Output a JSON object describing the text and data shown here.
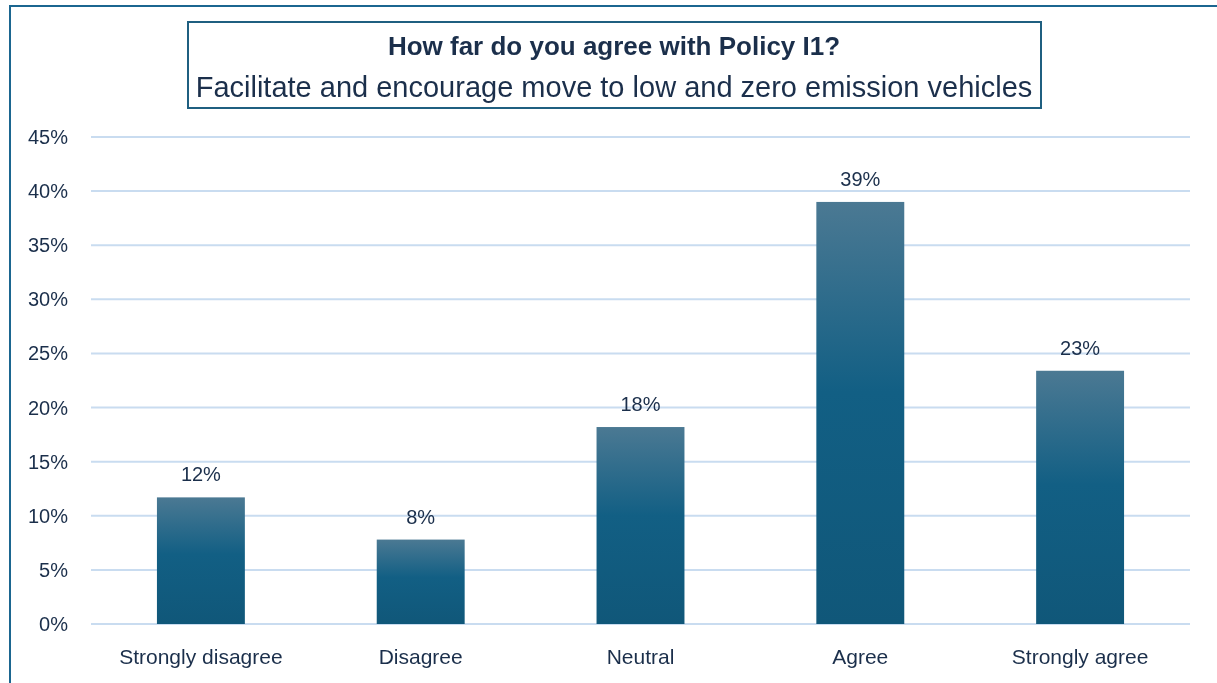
{
  "chart_data": {
    "type": "bar",
    "title": "How far do you agree with Policy I1?",
    "subtitle": "Facilitate and encourage move to low and zero emission vehicles",
    "categories": [
      "Strongly disagree",
      "Disagree",
      "Neutral",
      "Agree",
      "Strongly agree"
    ],
    "values": [
      11.7,
      7.8,
      18.2,
      39.0,
      23.4
    ],
    "value_labels": [
      "12%",
      "8%",
      "18%",
      "39%",
      "23%"
    ],
    "color": "#125f84",
    "ylim": [
      0,
      45
    ],
    "yticks": [
      {
        "value": 0,
        "label": "0%"
      },
      {
        "value": 5,
        "label": "5%"
      },
      {
        "value": 10,
        "label": "10%"
      },
      {
        "value": 15,
        "label": "15%"
      },
      {
        "value": 20,
        "label": "20%"
      },
      {
        "value": 25,
        "label": "25%"
      },
      {
        "value": 30,
        "label": "30%"
      },
      {
        "value": 35,
        "label": "35%"
      },
      {
        "value": 40,
        "label": "40%"
      },
      {
        "value": 45,
        "label": "45%"
      }
    ],
    "grid": "y"
  }
}
